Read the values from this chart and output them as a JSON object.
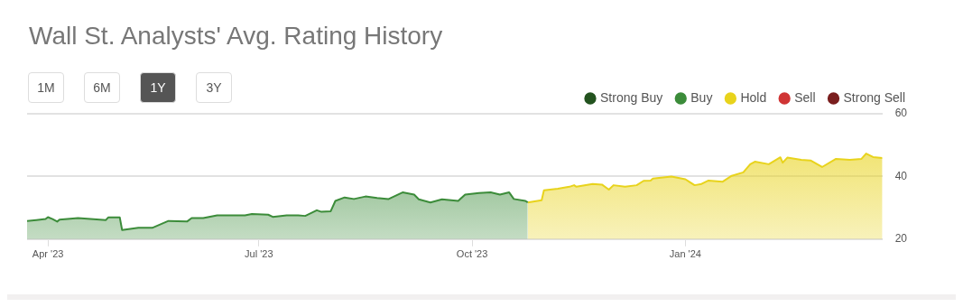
{
  "chart_data": {
    "type": "area",
    "title": "Wall St. Analysts' Avg. Rating History",
    "annotations": [
      "1M",
      "6M",
      "1Y",
      "3Y"
    ],
    "xlim": [
      "2023-03-23",
      "2024-03-26"
    ],
    "xticks": [
      {
        "value": "2023-04-01",
        "label": "Apr '23"
      },
      {
        "value": "2023-07-01",
        "label": "Jul '23"
      },
      {
        "value": "2023-10-01",
        "label": "Oct '23"
      },
      {
        "value": "2024-01-01",
        "label": "Jan '24"
      }
    ],
    "ylim": [
      20,
      60
    ],
    "yticks": [
      20,
      40,
      60
    ],
    "grid": "y",
    "legend": "top right",
    "marker": "none",
    "series": [
      {
        "name": "Strong Buy",
        "color": "#23531f"
      },
      {
        "name": "Buy",
        "color": "#3c8c3a",
        "x": [
          "2023-03-23",
          "2023-03-27",
          "2023-03-31",
          "2023-04-01",
          "2023-04-03",
          "2023-04-05",
          "2023-04-06",
          "2023-04-14",
          "2023-04-26",
          "2023-04-27",
          "2023-05-02",
          "2023-05-03",
          "2023-05-10",
          "2023-05-16",
          "2023-05-23",
          "2023-05-31",
          "2023-06-02",
          "2023-06-07",
          "2023-06-13",
          "2023-06-25",
          "2023-06-28",
          "2023-07-05",
          "2023-07-07",
          "2023-07-13",
          "2023-07-18",
          "2023-07-21",
          "2023-07-26",
          "2023-07-28",
          "2023-08-01",
          "2023-08-03",
          "2023-08-07",
          "2023-08-11",
          "2023-08-16",
          "2023-08-21",
          "2023-08-26",
          "2023-09-01",
          "2023-09-06",
          "2023-09-08",
          "2023-09-13",
          "2023-09-18",
          "2023-09-25",
          "2023-09-28",
          "2023-10-04",
          "2023-10-09",
          "2023-10-13",
          "2023-10-17",
          "2023-10-19",
          "2023-10-24",
          "2023-10-25"
        ],
        "values": [
          25.8,
          26.1,
          26.4,
          27.0,
          26.4,
          25.6,
          26.2,
          26.7,
          26.1,
          26.9,
          26.9,
          22.9,
          23.6,
          23.6,
          25.8,
          25.6,
          26.7,
          26.7,
          27.6,
          27.6,
          28.0,
          27.8,
          27.1,
          27.6,
          27.6,
          27.4,
          29.2,
          28.7,
          28.9,
          32.2,
          33.3,
          32.8,
          33.6,
          33.1,
          32.8,
          34.9,
          34.2,
          32.7,
          31.7,
          32.7,
          32.2,
          34.2,
          34.7,
          34.9,
          34.2,
          34.9,
          32.8,
          32.2,
          31.7
        ]
      },
      {
        "name": "Hold",
        "color": "#e8d31c",
        "x": [
          "2023-10-25",
          "2023-10-31",
          "2023-11-01",
          "2023-11-07",
          "2023-11-12",
          "2023-11-14",
          "2023-11-15",
          "2023-11-22",
          "2023-11-26",
          "2023-11-29",
          "2023-12-01",
          "2023-12-06",
          "2023-12-11",
          "2023-12-14",
          "2023-12-17",
          "2023-12-18",
          "2023-12-26",
          "2024-01-01",
          "2024-01-05",
          "2024-01-08",
          "2024-01-11",
          "2024-01-17",
          "2024-01-21",
          "2024-01-26",
          "2024-01-29",
          "2024-01-31",
          "2024-02-06",
          "2024-02-11",
          "2024-02-12",
          "2024-02-14",
          "2024-02-20",
          "2024-02-24",
          "2024-02-29",
          "2024-03-06",
          "2024-03-12",
          "2024-03-17",
          "2024-03-19",
          "2024-03-22",
          "2024-03-26"
        ],
        "values": [
          31.7,
          32.4,
          35.6,
          36.1,
          36.7,
          37.2,
          36.7,
          37.6,
          37.4,
          35.8,
          37.2,
          36.7,
          37.2,
          38.6,
          38.7,
          39.3,
          40.0,
          39.1,
          37.2,
          37.6,
          38.7,
          38.3,
          40.2,
          41.3,
          43.9,
          44.7,
          43.9,
          46.1,
          44.4,
          46.0,
          45.3,
          45.1,
          43.0,
          45.6,
          45.3,
          45.6,
          47.3,
          46.2,
          45.9
        ]
      },
      {
        "name": "Sell",
        "color": "#d03535"
      },
      {
        "name": "Strong Sell",
        "color": "#7a1e1e"
      }
    ]
  }
}
